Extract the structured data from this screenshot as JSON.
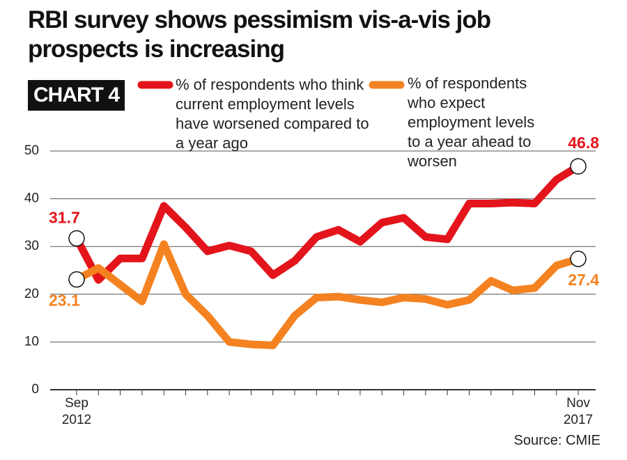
{
  "chart_data": {
    "type": "line",
    "title": "RBI survey shows pessimism vis-a-vis job prospects is increasing",
    "badge": "CHART 4",
    "source": "Source: CMIE",
    "categories": [
      "Sep 2012",
      null,
      null,
      null,
      null,
      null,
      null,
      null,
      null,
      null,
      null,
      null,
      null,
      null,
      null,
      null,
      null,
      null,
      null,
      null,
      null,
      null,
      null,
      "Nov 2017"
    ],
    "series": [
      {
        "name": "% of respondents who think current employment levels have worsened compared to a year ago",
        "color": "#e3141b",
        "values": [
          31.7,
          23,
          27.5,
          27.5,
          38.5,
          34,
          29,
          30.2,
          29,
          24,
          27,
          32,
          33.5,
          31,
          35,
          36,
          32,
          31.5,
          39,
          39,
          39.2,
          39,
          44,
          46.8
        ]
      },
      {
        "name": "% of respondents who expect employment levels to a year ahead to worsen",
        "color": "#f58220",
        "values": [
          23.1,
          25.5,
          22,
          18.5,
          30.5,
          20,
          15.5,
          10,
          9.5,
          9.3,
          15.5,
          19.3,
          19.5,
          18.8,
          18.3,
          19.3,
          19,
          17.8,
          18.8,
          22.8,
          20.8,
          21.3,
          26,
          27.4
        ]
      }
    ],
    "ylim": [
      0,
      50
    ],
    "yticks": [
      0,
      10,
      20,
      30,
      40,
      50
    ],
    "grid": true
  }
}
